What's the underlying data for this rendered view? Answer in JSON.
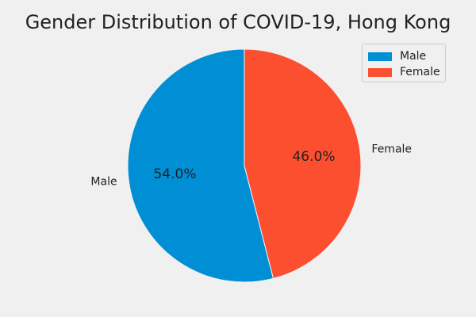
{
  "chart_data": {
    "type": "pie",
    "title": "Gender Distribution of COVID-19, Hong Kong",
    "categories": [
      "Male",
      "Female"
    ],
    "values": [
      54.0,
      46.0
    ],
    "labels": [
      "Male",
      "Female"
    ],
    "pct_labels": [
      "54.0%",
      "46.0%"
    ],
    "colors": [
      "#008fd5",
      "#fc4f30"
    ],
    "start_angle_deg": 90,
    "direction": "counterclockwise",
    "legend_position": "upper-right"
  }
}
